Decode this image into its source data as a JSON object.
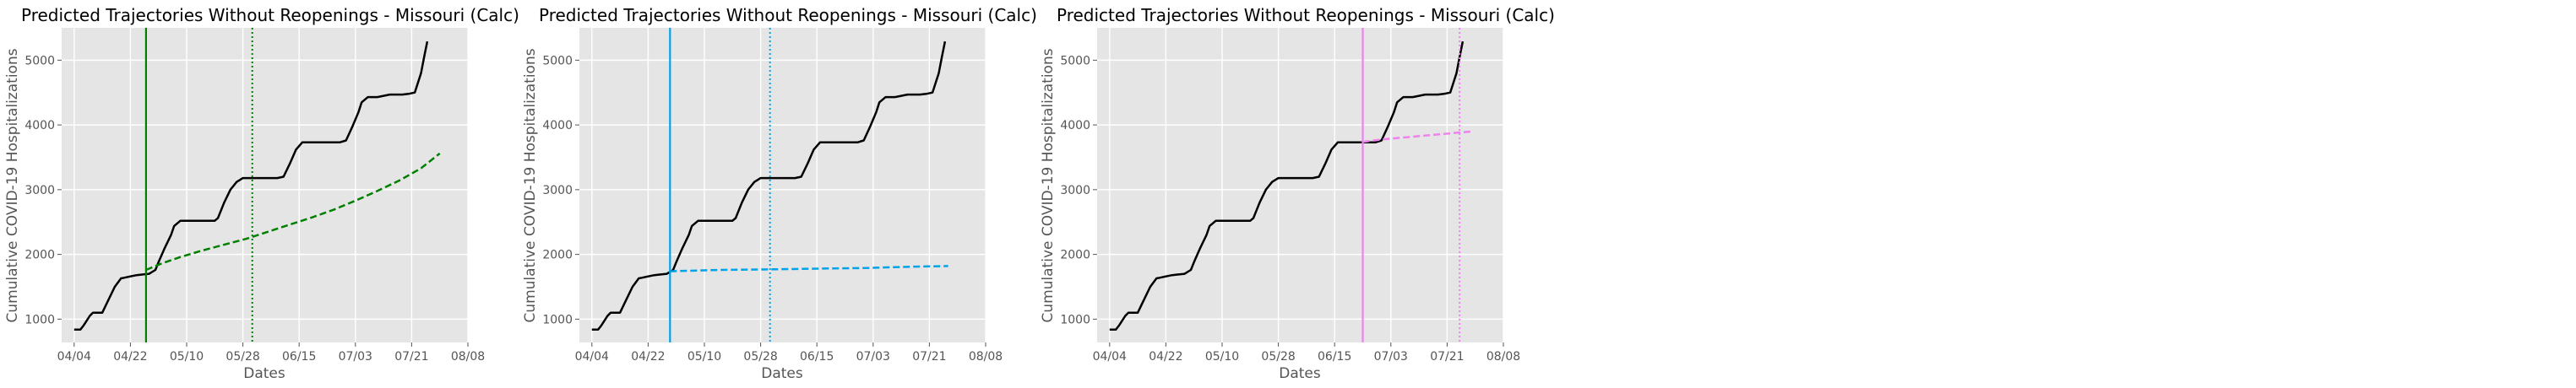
{
  "colors": {
    "background": "#e5e5e5",
    "observed": "#000000",
    "panel_1": "#008000",
    "panel_2": "#00a2e8",
    "panel_3": "#ee82ee"
  },
  "chart_data": [
    {
      "type": "line",
      "title": "Predicted Trajectories Without Reopenings - Missouri (Calc)",
      "xlabel": "Dates",
      "ylabel": "Cumulative COVID-19 Hospitalizations",
      "x_ticks": [
        "04/04",
        "04/22",
        "05/10",
        "05/28",
        "06/15",
        "07/03",
        "07/21",
        "08/08"
      ],
      "y_ticks": [
        1000,
        2000,
        3000,
        4000,
        5000
      ],
      "xlim": [
        "03/31",
        "08/08"
      ],
      "ylim": [
        640,
        5500
      ],
      "grid": true,
      "observed": {
        "x": [
          "04/04",
          "04/06",
          "04/07",
          "04/09",
          "04/10",
          "04/11",
          "04/13",
          "04/15",
          "04/17",
          "04/19",
          "04/20",
          "04/22",
          "04/24",
          "04/26",
          "04/28",
          "04/30",
          "05/01",
          "05/03",
          "05/05",
          "05/06",
          "05/08",
          "05/10",
          "05/12",
          "05/13",
          "05/15",
          "05/17",
          "05/19",
          "05/20",
          "05/22",
          "05/24",
          "05/26",
          "05/28",
          "05/31",
          "06/02",
          "06/04",
          "06/06",
          "06/08",
          "06/10",
          "06/12",
          "06/14",
          "06/16",
          "06/18",
          "06/20",
          "06/22",
          "06/24",
          "06/26",
          "06/28",
          "06/30",
          "07/02",
          "07/04",
          "07/05",
          "07/07",
          "07/08",
          "07/10",
          "07/12",
          "07/14",
          "07/16",
          "07/18",
          "07/20",
          "07/22",
          "07/24",
          "07/25",
          "07/26"
        ],
        "y": [
          840,
          840,
          900,
          1050,
          1100,
          1100,
          1100,
          1300,
          1500,
          1630,
          1640,
          1660,
          1680,
          1690,
          1700,
          1760,
          1880,
          2100,
          2300,
          2440,
          2520,
          2520,
          2520,
          2520,
          2520,
          2520,
          2520,
          2560,
          2800,
          3000,
          3120,
          3180,
          3180,
          3180,
          3180,
          3180,
          3180,
          3200,
          3400,
          3620,
          3730,
          3730,
          3730,
          3730,
          3730,
          3730,
          3730,
          3760,
          3970,
          4200,
          4350,
          4430,
          4430,
          4430,
          4450,
          4470,
          4470,
          4470,
          4480,
          4500,
          4800,
          5050,
          5290
        ]
      },
      "projection": {
        "name": "",
        "style": "dashed",
        "x": [
          "04/27",
          "05/02",
          "05/08",
          "05/15",
          "05/22",
          "05/29",
          "06/05",
          "06/12",
          "06/19",
          "06/26",
          "07/03",
          "07/10",
          "07/17",
          "07/24",
          "07/30"
        ],
        "y": [
          1760,
          1860,
          1960,
          2060,
          2150,
          2240,
          2350,
          2460,
          2570,
          2690,
          2830,
          2980,
          3140,
          3330,
          3560
        ]
      },
      "markers": [
        {
          "x": "04/27",
          "style": "solid"
        },
        {
          "x": "05/31",
          "style": "dotted"
        }
      ]
    },
    {
      "type": "line",
      "title": "Predicted Trajectories Without Reopenings - Missouri (Calc)",
      "xlabel": "Dates",
      "ylabel": "Cumulative COVID-19 Hospitalizations",
      "x_ticks": [
        "04/04",
        "04/22",
        "05/10",
        "05/28",
        "06/15",
        "07/03",
        "07/21",
        "08/08"
      ],
      "y_ticks": [
        1000,
        2000,
        3000,
        4000,
        5000
      ],
      "xlim": [
        "03/31",
        "08/08"
      ],
      "ylim": [
        640,
        5500
      ],
      "grid": true,
      "observed": {
        "x": [
          "04/04",
          "04/06",
          "04/07",
          "04/09",
          "04/10",
          "04/11",
          "04/13",
          "04/15",
          "04/17",
          "04/19",
          "04/20",
          "04/22",
          "04/24",
          "04/26",
          "04/28",
          "04/30",
          "05/01",
          "05/03",
          "05/05",
          "05/06",
          "05/08",
          "05/10",
          "05/12",
          "05/13",
          "05/15",
          "05/17",
          "05/19",
          "05/20",
          "05/22",
          "05/24",
          "05/26",
          "05/28",
          "05/31",
          "06/02",
          "06/04",
          "06/06",
          "06/08",
          "06/10",
          "06/12",
          "06/14",
          "06/16",
          "06/18",
          "06/20",
          "06/22",
          "06/24",
          "06/26",
          "06/28",
          "06/30",
          "07/02",
          "07/04",
          "07/05",
          "07/07",
          "07/08",
          "07/10",
          "07/12",
          "07/14",
          "07/16",
          "07/18",
          "07/20",
          "07/22",
          "07/24",
          "07/25",
          "07/26"
        ],
        "y": [
          840,
          840,
          900,
          1050,
          1100,
          1100,
          1100,
          1300,
          1500,
          1630,
          1640,
          1660,
          1680,
          1690,
          1700,
          1760,
          1880,
          2100,
          2300,
          2440,
          2520,
          2520,
          2520,
          2520,
          2520,
          2520,
          2520,
          2560,
          2800,
          3000,
          3120,
          3180,
          3180,
          3180,
          3180,
          3180,
          3180,
          3200,
          3400,
          3620,
          3730,
          3730,
          3730,
          3730,
          3730,
          3730,
          3730,
          3760,
          3970,
          4200,
          4350,
          4430,
          4430,
          4430,
          4450,
          4470,
          4470,
          4470,
          4480,
          4500,
          4800,
          5050,
          5290
        ]
      },
      "projection": {
        "name": "",
        "style": "dashed",
        "x": [
          "04/29",
          "05/15",
          "06/01",
          "06/15",
          "07/01",
          "07/15",
          "07/27"
        ],
        "y": [
          1740,
          1760,
          1770,
          1780,
          1790,
          1810,
          1820
        ]
      },
      "markers": [
        {
          "x": "04/29",
          "style": "solid"
        },
        {
          "x": "05/31",
          "style": "dotted"
        }
      ]
    },
    {
      "type": "line",
      "title": "Predicted Trajectories Without Reopenings - Missouri (Calc)",
      "xlabel": "Dates",
      "ylabel": "Cumulative COVID-19 Hospitalizations",
      "x_ticks": [
        "04/04",
        "04/22",
        "05/10",
        "05/28",
        "06/15",
        "07/03",
        "07/21",
        "08/08"
      ],
      "y_ticks": [
        1000,
        2000,
        3000,
        4000,
        5000
      ],
      "xlim": [
        "03/31",
        "08/08"
      ],
      "ylim": [
        640,
        5500
      ],
      "grid": true,
      "observed": {
        "x": [
          "04/04",
          "04/06",
          "04/07",
          "04/09",
          "04/10",
          "04/11",
          "04/13",
          "04/15",
          "04/17",
          "04/19",
          "04/20",
          "04/22",
          "04/24",
          "04/26",
          "04/28",
          "04/30",
          "05/01",
          "05/03",
          "05/05",
          "05/06",
          "05/08",
          "05/10",
          "05/12",
          "05/13",
          "05/15",
          "05/17",
          "05/19",
          "05/20",
          "05/22",
          "05/24",
          "05/26",
          "05/28",
          "05/31",
          "06/02",
          "06/04",
          "06/06",
          "06/08",
          "06/10",
          "06/12",
          "06/14",
          "06/16",
          "06/18",
          "06/20",
          "06/22",
          "06/24",
          "06/26",
          "06/28",
          "06/30",
          "07/02",
          "07/04",
          "07/05",
          "07/07",
          "07/08",
          "07/10",
          "07/12",
          "07/14",
          "07/16",
          "07/18",
          "07/20",
          "07/22",
          "07/24",
          "07/25",
          "07/26"
        ],
        "y": [
          840,
          840,
          900,
          1050,
          1100,
          1100,
          1100,
          1300,
          1500,
          1630,
          1640,
          1660,
          1680,
          1690,
          1700,
          1760,
          1880,
          2100,
          2300,
          2440,
          2520,
          2520,
          2520,
          2520,
          2520,
          2520,
          2520,
          2560,
          2800,
          3000,
          3120,
          3180,
          3180,
          3180,
          3180,
          3180,
          3180,
          3200,
          3400,
          3620,
          3730,
          3730,
          3730,
          3730,
          3730,
          3730,
          3730,
          3760,
          3970,
          4200,
          4350,
          4430,
          4430,
          4430,
          4450,
          4470,
          4470,
          4470,
          4480,
          4500,
          4800,
          5050,
          5290
        ]
      },
      "projection": {
        "name": "",
        "style": "dashed",
        "x": [
          "06/24",
          "07/01",
          "07/08",
          "07/15",
          "07/22",
          "07/29"
        ],
        "y": [
          3740,
          3780,
          3810,
          3840,
          3870,
          3900
        ]
      },
      "markers": [
        {
          "x": "06/24",
          "style": "solid"
        },
        {
          "x": "07/25",
          "style": "dotted"
        }
      ]
    }
  ]
}
